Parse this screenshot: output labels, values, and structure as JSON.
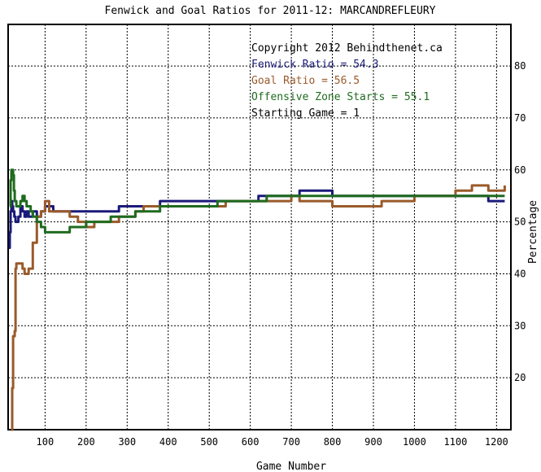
{
  "chart_data": {
    "type": "line",
    "title": "Fenwick and Goal Ratios for 2011-12: MARCANDREFLEURY",
    "xlabel": "Game Number",
    "ylabel": "Percentage",
    "xlim": [
      10,
      1235
    ],
    "ylim": [
      10,
      88
    ],
    "grid": true,
    "x_ticks": [
      100,
      200,
      300,
      400,
      500,
      600,
      700,
      800,
      900,
      1000,
      1100,
      1200
    ],
    "y_ticks": [
      20,
      30,
      40,
      50,
      60,
      70,
      80
    ],
    "annotations": [
      {
        "text": "Copyright 2012 Behindthenet.ca",
        "color": "#000000"
      },
      {
        "text": "Fenwick Ratio = 54.3",
        "color": "#1a1a7a"
      },
      {
        "text": "Goal Ratio = 56.5",
        "color": "#9a5a2a"
      },
      {
        "text": "Offensive Zone Starts = 55.1",
        "color": "#1f6b1f"
      },
      {
        "text": "Starting Game = 1",
        "color": "#000000"
      }
    ],
    "series": [
      {
        "key": "fenwick",
        "color": "#1a1a7a",
        "x": [
          12,
          14,
          16,
          18,
          20,
          22,
          25,
          28,
          31,
          35,
          40,
          45,
          50,
          55,
          60,
          65,
          70,
          75,
          80,
          90,
          100,
          120,
          140,
          160,
          180,
          200,
          220,
          240,
          260,
          280,
          300,
          320,
          340,
          360,
          380,
          400,
          420,
          440,
          460,
          480,
          500,
          520,
          540,
          560,
          580,
          600,
          620,
          640,
          660,
          680,
          700,
          720,
          740,
          760,
          780,
          800,
          820,
          840,
          860,
          880,
          900,
          920,
          940,
          960,
          980,
          1000,
          1020,
          1040,
          1060,
          1080,
          1100,
          1120,
          1140,
          1160,
          1180,
          1200,
          1220
        ],
        "y": [
          45,
          48,
          52,
          54,
          53,
          52,
          51,
          50,
          50,
          51,
          53,
          52,
          51,
          52,
          51,
          51,
          52,
          52,
          51,
          52,
          53,
          52,
          52,
          52,
          52,
          52,
          52,
          52,
          52,
          53,
          53,
          53,
          53,
          53,
          54,
          54,
          54,
          54,
          54,
          54,
          54,
          54,
          54,
          54,
          54,
          54,
          55,
          55,
          55,
          55,
          55,
          56,
          56,
          56,
          56,
          55,
          55,
          55,
          55,
          55,
          55,
          55,
          55,
          55,
          55,
          55,
          55,
          55,
          55,
          55,
          55,
          55,
          55,
          55,
          54,
          54,
          54
        ]
      },
      {
        "key": "goal",
        "color": "#9a5a2a",
        "x": [
          18,
          20,
          22,
          24,
          26,
          28,
          30,
          35,
          40,
          45,
          50,
          55,
          60,
          70,
          80,
          90,
          100,
          110,
          120,
          140,
          160,
          180,
          200,
          220,
          240,
          260,
          280,
          300,
          320,
          340,
          360,
          380,
          400,
          420,
          440,
          460,
          480,
          500,
          520,
          540,
          560,
          580,
          600,
          620,
          640,
          660,
          680,
          700,
          720,
          740,
          760,
          780,
          800,
          820,
          840,
          860,
          880,
          900,
          920,
          940,
          960,
          980,
          1000,
          1020,
          1040,
          1060,
          1080,
          1100,
          1120,
          1140,
          1160,
          1180,
          1200,
          1220
        ],
        "y": [
          10,
          18,
          28,
          28,
          29,
          41,
          42,
          42,
          42,
          41,
          40,
          40,
          41,
          46,
          51,
          52,
          54,
          52,
          52,
          52,
          51,
          50,
          49,
          50,
          50,
          50,
          51,
          51,
          52,
          53,
          53,
          53,
          53,
          53,
          53,
          53,
          53,
          53,
          53,
          54,
          54,
          54,
          54,
          54,
          54,
          54,
          54,
          55,
          54,
          54,
          54,
          54,
          53,
          53,
          53,
          53,
          53,
          53,
          54,
          54,
          54,
          54,
          55,
          55,
          55,
          55,
          55,
          56,
          56,
          57,
          57,
          56,
          56,
          57
        ]
      },
      {
        "key": "ozone",
        "color": "#1f6b1f",
        "x": [
          14,
          16,
          18,
          20,
          22,
          24,
          26,
          28,
          30,
          32,
          35,
          40,
          45,
          50,
          55,
          60,
          65,
          70,
          75,
          80,
          90,
          100,
          110,
          120,
          140,
          160,
          180,
          200,
          220,
          240,
          260,
          280,
          300,
          320,
          340,
          360,
          380,
          400,
          420,
          440,
          460,
          480,
          500,
          520,
          540,
          560,
          580,
          600,
          620,
          640,
          660,
          680,
          700,
          720,
          740,
          760,
          780,
          800,
          820,
          840,
          860,
          880,
          900,
          920,
          940,
          960,
          980,
          1000,
          1020,
          1040,
          1060,
          1080,
          1100,
          1120,
          1140,
          1160,
          1180,
          1200,
          1220
        ],
        "y": [
          53,
          58,
          60,
          60,
          59,
          56,
          54,
          54,
          53,
          53,
          53,
          54,
          55,
          54,
          53,
          53,
          52,
          51,
          51,
          50,
          49,
          48,
          48,
          48,
          48,
          49,
          49,
          50,
          50,
          50,
          51,
          51,
          51,
          52,
          52,
          52,
          53,
          53,
          53,
          53,
          53,
          53,
          53,
          54,
          54,
          54,
          54,
          54,
          54,
          55,
          55,
          55,
          55,
          55,
          55,
          55,
          55,
          55,
          55,
          55,
          55,
          55,
          55,
          55,
          55,
          55,
          55,
          55,
          55,
          55,
          55,
          55,
          55,
          55,
          55,
          55,
          55,
          55,
          55
        ]
      }
    ]
  }
}
